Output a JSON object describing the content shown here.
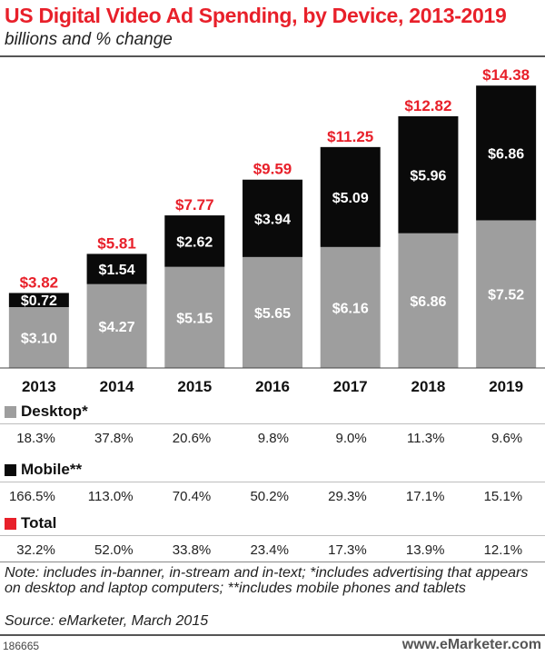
{
  "chart_data": {
    "type": "bar",
    "stacked": true,
    "title": "US Digital Video Ad Spending, by Device, 2013-2019",
    "subtitle": "billions and % change",
    "categories": [
      "2013",
      "2014",
      "2015",
      "2016",
      "2017",
      "2018",
      "2019"
    ],
    "series": [
      {
        "name": "Desktop*",
        "color": "#9e9e9e",
        "values": [
          3.1,
          4.27,
          5.15,
          5.65,
          6.16,
          6.86,
          7.52
        ],
        "labels": [
          "$3.10",
          "$4.27",
          "$5.15",
          "$5.65",
          "$6.16",
          "$6.86",
          "$7.52"
        ]
      },
      {
        "name": "Mobile**",
        "color": "#0a0a0a",
        "values": [
          0.72,
          1.54,
          2.62,
          3.94,
          5.09,
          5.96,
          6.86
        ],
        "labels": [
          "$0.72",
          "$1.54",
          "$2.62",
          "$3.94",
          "$5.09",
          "$5.96",
          "$6.86"
        ]
      }
    ],
    "totals": {
      "name": "Total",
      "color": "#e8202a",
      "values": [
        3.82,
        5.81,
        7.77,
        9.59,
        11.25,
        12.82,
        14.38
      ],
      "labels": [
        "$3.82",
        "$5.81",
        "$7.77",
        "$9.59",
        "$11.25",
        "$12.82",
        "$14.38"
      ]
    },
    "ylim": [
      0,
      15.5
    ],
    "percent_change": {
      "desktop": [
        "18.3%",
        "37.8%",
        "20.6%",
        "9.8%",
        "9.0%",
        "11.3%",
        "9.6%"
      ],
      "mobile": [
        "166.5%",
        "113.0%",
        "70.4%",
        "50.2%",
        "29.3%",
        "17.1%",
        "15.1%"
      ],
      "total": [
        "32.2%",
        "52.0%",
        "33.8%",
        "23.4%",
        "17.3%",
        "13.9%",
        "12.1%"
      ]
    },
    "xlabel": "",
    "ylabel": "",
    "grid": false,
    "legend": "table-below"
  },
  "footer": {
    "note": "Note: includes in-banner, in-stream and in-text; *includes advertising that appears on desktop and laptop computers; **includes mobile phones and tablets",
    "source": "Source: eMarketer, March 2015",
    "chart_id": "186665",
    "brand_prefix": "www.",
    "brand_main": "eMarketer",
    "brand_suffix": ".com"
  }
}
